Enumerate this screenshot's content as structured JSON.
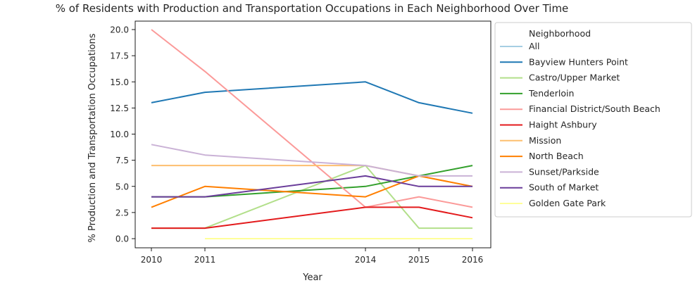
{
  "chart_data": {
    "type": "line",
    "title": "% of Residents with Production and Transportation Occupations in Each Neighborhood Over Time",
    "xlabel": "Year",
    "ylabel": "% Production and Transportation Occupations",
    "x": [
      2010,
      2011,
      2014,
      2015,
      2016
    ],
    "xlim": [
      2010,
      2016
    ],
    "ylim": [
      0,
      20
    ],
    "yticks": [
      "0.0",
      "2.5",
      "5.0",
      "7.5",
      "10.0",
      "12.5",
      "15.0",
      "17.5",
      "20.0"
    ],
    "xticks": [
      "2010",
      "2011",
      "2014",
      "2015",
      "2016"
    ],
    "grid": false,
    "legend_title": "Neighborhood",
    "legend_position": "outside-right",
    "series": [
      {
        "name": "All",
        "color": "#a6cee3",
        "values": [
          null,
          null,
          null,
          null,
          null
        ]
      },
      {
        "name": "Bayview Hunters Point",
        "color": "#1f78b4",
        "values": [
          13,
          14,
          15,
          13,
          12
        ]
      },
      {
        "name": "Castro/Upper Market",
        "color": "#b2df8a",
        "values": [
          1,
          1,
          7,
          1,
          1
        ]
      },
      {
        "name": "Tenderloin",
        "color": "#33a02c",
        "values": [
          4,
          4,
          5,
          6,
          7
        ]
      },
      {
        "name": "Financial District/South Beach",
        "color": "#fb9a99",
        "values": [
          20,
          16,
          3,
          4,
          3
        ]
      },
      {
        "name": "Haight Ashbury",
        "color": "#e31a1c",
        "values": [
          1,
          1,
          3,
          3,
          2
        ]
      },
      {
        "name": "Mission",
        "color": "#fdbf6f",
        "values": [
          7,
          7,
          7,
          6,
          5
        ]
      },
      {
        "name": "North Beach",
        "color": "#ff7f00",
        "values": [
          3,
          5,
          4,
          6,
          5
        ]
      },
      {
        "name": "Sunset/Parkside",
        "color": "#cab2d6",
        "values": [
          9,
          8,
          7,
          6,
          6
        ]
      },
      {
        "name": "South of Market",
        "color": "#6a3d9a",
        "values": [
          4,
          4,
          6,
          5,
          5
        ]
      },
      {
        "name": "Golden Gate Park",
        "color": "#ffff99",
        "values": [
          null,
          0,
          0,
          0,
          0
        ]
      }
    ]
  }
}
